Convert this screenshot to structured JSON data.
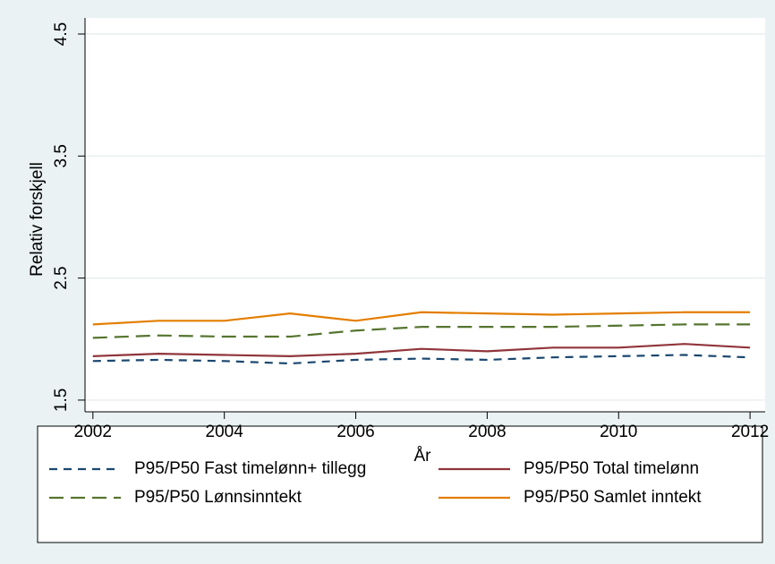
{
  "chart_data": {
    "type": "line",
    "xlabel": "År",
    "ylabel": "Relativ forskjell",
    "x": [
      2002,
      2003,
      2004,
      2005,
      2006,
      2007,
      2008,
      2009,
      2010,
      2011,
      2012
    ],
    "xlim": [
      2001.88,
      2012.23
    ],
    "xticks": [
      2002,
      2004,
      2006,
      2008,
      2010,
      2012
    ],
    "ylim": [
      1.404,
      4.632
    ],
    "yticks": [
      1.5,
      2.5,
      3.5,
      4.5
    ],
    "grid": true,
    "legend": "bottom",
    "series": [
      {
        "name": "P95/P50 Fast timelønn+ tillegg",
        "color": "#1a476f",
        "style": "dashed",
        "values": [
          1.82,
          1.83,
          1.82,
          1.8,
          1.83,
          1.84,
          1.83,
          1.85,
          1.86,
          1.87,
          1.85
        ]
      },
      {
        "name": "P95/P50 Total timelønn",
        "color": "#90353b",
        "style": "solid",
        "values": [
          1.86,
          1.88,
          1.87,
          1.86,
          1.88,
          1.92,
          1.9,
          1.93,
          1.93,
          1.96,
          1.93
        ]
      },
      {
        "name": "P95/P50 Lønnsinntekt",
        "color": "#55752f",
        "style": "longdash",
        "values": [
          2.01,
          2.03,
          2.02,
          2.02,
          2.07,
          2.1,
          2.1,
          2.1,
          2.11,
          2.12,
          2.12
        ]
      },
      {
        "name": "P95/P50 Samlet inntekt",
        "color": "#e37e00",
        "style": "solid",
        "values": [
          2.12,
          2.15,
          2.15,
          2.21,
          2.15,
          2.22,
          2.21,
          2.2,
          2.21,
          2.22,
          2.22
        ]
      }
    ]
  }
}
